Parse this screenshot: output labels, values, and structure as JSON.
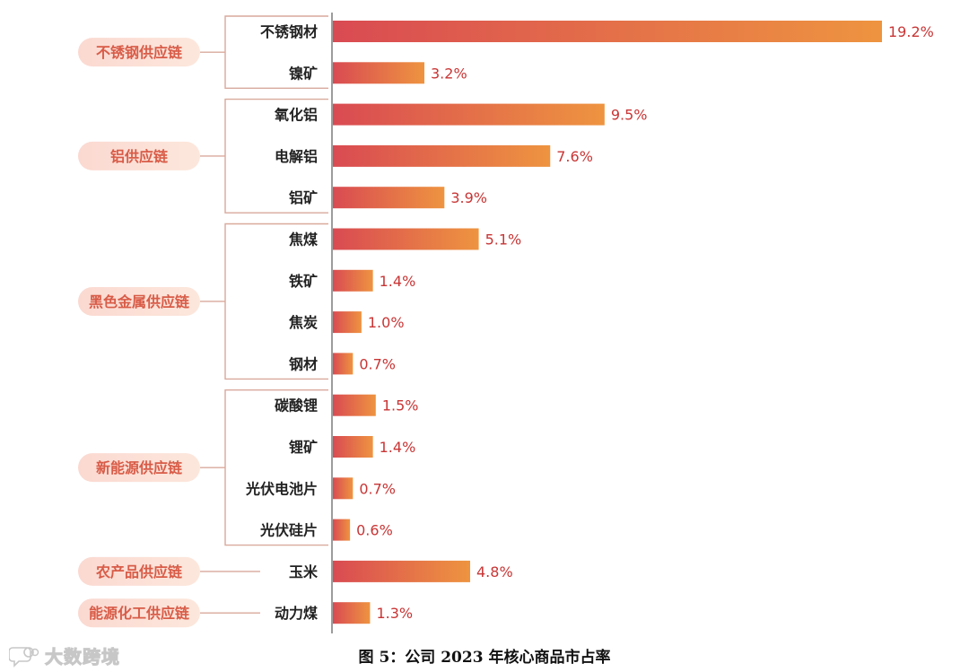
{
  "caption": "图 5：公司 2023 年核心商品市占率",
  "watermark": {
    "text": "大数跨境",
    "icon": "chat-bubble-logo-icon"
  },
  "colors": {
    "bar_start": "#D94A52",
    "bar_end": "#EE9440",
    "value_label": "#C93535",
    "category_label": "#222222",
    "pill_bg_start": "#FBD9D1",
    "pill_bg_end": "#FCE7DC",
    "pill_text": "#D85C48",
    "bracket": "#D9A99C",
    "axis": "#666666"
  },
  "chart_data": {
    "type": "bar",
    "orientation": "horizontal",
    "unit": "%",
    "xlim": [
      0,
      19.2
    ],
    "categories": [
      "不锈钢材",
      "镍矿",
      "氧化铝",
      "电解铝",
      "铝矿",
      "焦煤",
      "铁矿",
      "焦炭",
      "钢材",
      "碳酸锂",
      "锂矿",
      "光伏电池片",
      "光伏硅片",
      "玉米",
      "动力煤"
    ],
    "values": [
      19.2,
      3.2,
      9.5,
      7.6,
      3.9,
      5.1,
      1.4,
      1.0,
      0.7,
      1.5,
      1.4,
      0.7,
      0.6,
      4.8,
      1.3
    ],
    "value_labels": [
      "19.2%",
      "3.2%",
      "9.5%",
      "7.6%",
      "3.9%",
      "5.1%",
      "1.4%",
      "1.0%",
      "0.7%",
      "1.5%",
      "1.4%",
      "0.7%",
      "0.6%",
      "4.8%",
      "1.3%"
    ],
    "groups": [
      {
        "name": "不锈钢供应链",
        "first": 0,
        "last": 1
      },
      {
        "name": "铝供应链",
        "first": 2,
        "last": 4
      },
      {
        "name": "黑色金属供应链",
        "first": 5,
        "last": 8
      },
      {
        "name": "新能源供应链",
        "first": 9,
        "last": 12
      },
      {
        "name": "农产品供应链",
        "first": 13,
        "last": 13
      },
      {
        "name": "能源化工供应链",
        "first": 14,
        "last": 14
      }
    ]
  }
}
